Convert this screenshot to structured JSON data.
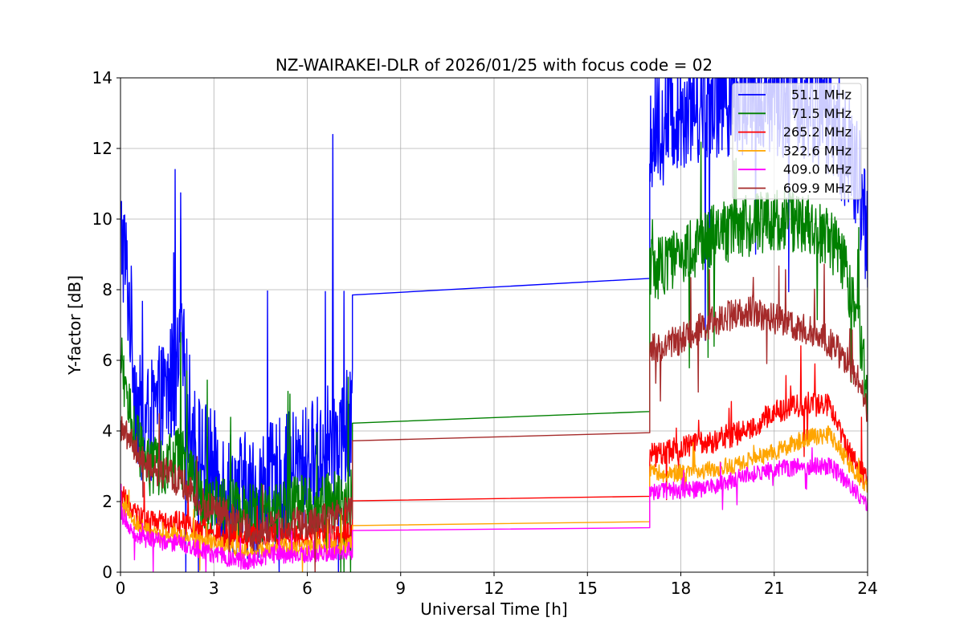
{
  "chart_data": {
    "type": "line",
    "title": "NZ-WAIRAKEI-DLR of 2026/01/25 with focus code = 02",
    "xlabel": "Universal Time [h]",
    "ylabel": "Y-factor [dB]",
    "xlim": [
      0,
      24
    ],
    "ylim": [
      0,
      14
    ],
    "xticks": [
      0,
      3,
      6,
      9,
      12,
      15,
      18,
      21,
      24
    ],
    "xtick_labels": [
      "0",
      "3",
      "6",
      "9",
      "12",
      "15",
      "18",
      "21",
      "24"
    ],
    "yticks": [
      0,
      2,
      4,
      6,
      8,
      10,
      12,
      14
    ],
    "ytick_labels": [
      "0",
      "2",
      "4",
      "6",
      "8",
      "10",
      "12",
      "14"
    ],
    "grid": true,
    "legend_position": "top-right",
    "gap": {
      "start": 7.45,
      "end": 17.0
    },
    "series": [
      {
        "name": "51.1 MHz",
        "legend_label": " 51.1 MHz",
        "color": "#0000ff",
        "noise": 1.8,
        "gap_values": [
          7.85,
          8.32
        ],
        "points": [
          [
            0,
            9.5
          ],
          [
            0.1,
            9.2
          ],
          [
            0.3,
            7.5
          ],
          [
            0.5,
            5.0
          ],
          [
            0.7,
            4.0
          ],
          [
            1.0,
            4.2
          ],
          [
            1.3,
            4.7
          ],
          [
            1.6,
            5.3
          ],
          [
            1.8,
            5.6
          ],
          [
            2.0,
            6.0
          ],
          [
            2.2,
            4.5
          ],
          [
            2.4,
            3.5
          ],
          [
            2.8,
            3.0
          ],
          [
            3.2,
            2.6
          ],
          [
            3.6,
            2.3
          ],
          [
            4.0,
            2.2
          ],
          [
            4.3,
            2.1
          ],
          [
            4.7,
            2.4
          ],
          [
            5.0,
            2.5
          ],
          [
            5.5,
            2.8
          ],
          [
            6.0,
            3.0
          ],
          [
            6.5,
            3.4
          ],
          [
            7.0,
            3.9
          ],
          [
            7.45,
            4.0
          ],
          [
            17.0,
            12.5
          ],
          [
            17.5,
            12.8
          ],
          [
            18.0,
            13.2
          ],
          [
            19.0,
            13.5
          ],
          [
            20.0,
            13.6
          ],
          [
            21.0,
            13.6
          ],
          [
            22.0,
            13.4
          ],
          [
            22.8,
            13.0
          ],
          [
            23.3,
            12.0
          ],
          [
            23.7,
            11.0
          ],
          [
            24.0,
            9.5
          ]
        ]
      },
      {
        "name": "71.5 MHz",
        "legend_label": " 71.5 MHz",
        "color": "#008000",
        "noise": 0.9,
        "gap_values": [
          4.22,
          4.55
        ],
        "points": [
          [
            0,
            6.0
          ],
          [
            0.2,
            5.0
          ],
          [
            0.5,
            3.8
          ],
          [
            0.8,
            3.0
          ],
          [
            1.2,
            2.9
          ],
          [
            1.6,
            3.2
          ],
          [
            2.0,
            3.2
          ],
          [
            2.3,
            2.5
          ],
          [
            2.6,
            2.1
          ],
          [
            3.0,
            1.9
          ],
          [
            3.5,
            1.8
          ],
          [
            4.0,
            1.6
          ],
          [
            4.5,
            1.6
          ],
          [
            5.0,
            1.7
          ],
          [
            5.5,
            1.8
          ],
          [
            6.0,
            1.9
          ],
          [
            6.5,
            1.9
          ],
          [
            7.0,
            2.0
          ],
          [
            7.45,
            2.1
          ],
          [
            17.0,
            8.5
          ],
          [
            17.5,
            8.7
          ],
          [
            18.0,
            9.0
          ],
          [
            19.0,
            9.5
          ],
          [
            20.0,
            9.8
          ],
          [
            21.0,
            10.0
          ],
          [
            22.0,
            9.9
          ],
          [
            22.8,
            9.5
          ],
          [
            23.3,
            8.5
          ],
          [
            23.7,
            7.0
          ],
          [
            24.0,
            5.2
          ]
        ]
      },
      {
        "name": "265.2 MHz",
        "legend_label": " 265.2 MHz",
        "color": "#ff0000",
        "noise": 0.35,
        "gap_values": [
          2.02,
          2.15
        ],
        "points": [
          [
            0,
            2.2
          ],
          [
            0.3,
            1.9
          ],
          [
            0.6,
            1.5
          ],
          [
            1.0,
            1.4
          ],
          [
            2.0,
            1.4
          ],
          [
            3.0,
            1.1
          ],
          [
            4.0,
            1.0
          ],
          [
            5.0,
            1.1
          ],
          [
            6.0,
            1.0
          ],
          [
            7.0,
            1.0
          ],
          [
            7.45,
            1.1
          ],
          [
            17.0,
            3.3
          ],
          [
            18.0,
            3.5
          ],
          [
            19.0,
            3.7
          ],
          [
            20.0,
            4.0
          ],
          [
            21.0,
            4.5
          ],
          [
            22.0,
            4.8
          ],
          [
            22.8,
            4.7
          ],
          [
            23.3,
            3.5
          ],
          [
            24.0,
            2.6
          ]
        ]
      },
      {
        "name": "322.6 MHz",
        "legend_label": " 322.6 MHz",
        "color": "#ffa500",
        "noise": 0.25,
        "gap_values": [
          1.32,
          1.43
        ],
        "points": [
          [
            0,
            1.9
          ],
          [
            0.3,
            1.6
          ],
          [
            0.6,
            1.3
          ],
          [
            1.0,
            1.1
          ],
          [
            2.0,
            1.0
          ],
          [
            3.0,
            0.8
          ],
          [
            4.0,
            0.6
          ],
          [
            5.0,
            0.7
          ],
          [
            6.0,
            0.7
          ],
          [
            7.0,
            0.7
          ],
          [
            7.45,
            0.8
          ],
          [
            17.0,
            2.8
          ],
          [
            18.0,
            2.8
          ],
          [
            19.0,
            2.9
          ],
          [
            20.0,
            3.1
          ],
          [
            21.0,
            3.4
          ],
          [
            22.0,
            3.8
          ],
          [
            22.8,
            3.9
          ],
          [
            23.3,
            3.2
          ],
          [
            24.0,
            2.4
          ]
        ]
      },
      {
        "name": "409.0 MHz",
        "legend_label": " 409.0 MHz",
        "color": "#ff00ff",
        "noise": 0.25,
        "gap_values": [
          1.18,
          1.26
        ],
        "points": [
          [
            0,
            1.7
          ],
          [
            0.3,
            1.3
          ],
          [
            0.6,
            1.0
          ],
          [
            1.0,
            0.9
          ],
          [
            2.0,
            0.8
          ],
          [
            3.0,
            0.5
          ],
          [
            4.0,
            0.3
          ],
          [
            5.0,
            0.5
          ],
          [
            6.0,
            0.5
          ],
          [
            7.0,
            0.6
          ],
          [
            7.45,
            0.6
          ],
          [
            17.0,
            2.3
          ],
          [
            18.0,
            2.3
          ],
          [
            19.0,
            2.4
          ],
          [
            20.0,
            2.7
          ],
          [
            21.0,
            2.9
          ],
          [
            22.0,
            3.0
          ],
          [
            22.8,
            3.0
          ],
          [
            23.3,
            2.6
          ],
          [
            24.0,
            1.9
          ]
        ]
      },
      {
        "name": "609.9 MHz",
        "legend_label": " 609.9 MHz",
        "color": "#a52a2a",
        "noise": 0.45,
        "gap_values": [
          3.72,
          3.95
        ],
        "points": [
          [
            0,
            4.1
          ],
          [
            0.3,
            3.7
          ],
          [
            0.7,
            3.2
          ],
          [
            1.0,
            2.9
          ],
          [
            1.5,
            2.8
          ],
          [
            2.0,
            2.5
          ],
          [
            2.5,
            2.0
          ],
          [
            3.0,
            1.8
          ],
          [
            3.5,
            1.6
          ],
          [
            4.0,
            1.3
          ],
          [
            4.3,
            1.0
          ],
          [
            4.7,
            1.2
          ],
          [
            5.0,
            1.4
          ],
          [
            5.5,
            1.4
          ],
          [
            6.0,
            1.4
          ],
          [
            6.5,
            1.5
          ],
          [
            7.0,
            1.6
          ],
          [
            7.45,
            1.7
          ],
          [
            17.0,
            6.3
          ],
          [
            17.5,
            6.4
          ],
          [
            18.0,
            6.6
          ],
          [
            19.0,
            7.1
          ],
          [
            20.0,
            7.4
          ],
          [
            21.0,
            7.2
          ],
          [
            22.0,
            6.9
          ],
          [
            22.8,
            6.5
          ],
          [
            23.3,
            6.0
          ],
          [
            23.7,
            5.4
          ],
          [
            24.0,
            4.5
          ]
        ]
      }
    ]
  }
}
